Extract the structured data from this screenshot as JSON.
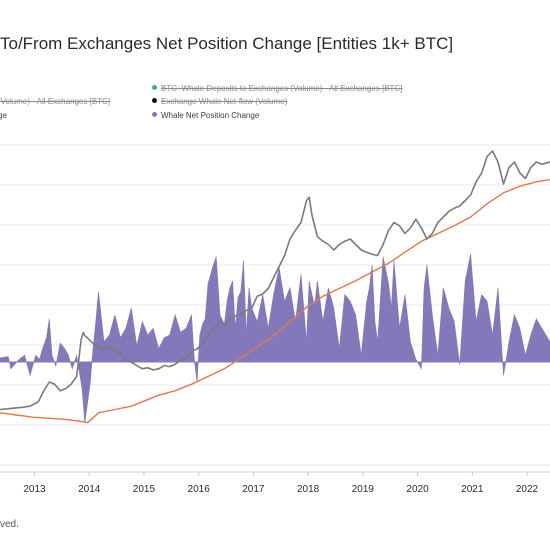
{
  "title": "To/From Exchanges Net Position Change [Entities 1k+ BTC]",
  "legend": [
    {
      "label": "BTC: Whale Deposits to Exchanges (Volume) - All Exchanges [BTC]",
      "color": "#3bb273",
      "active": false
    },
    {
      "label": "(Volume) - All Exchanges [BTC]",
      "color": "#9b9b9b",
      "active": false
    },
    {
      "label": "Exchange Whale Net-flow (Volume)",
      "color": "#111111",
      "active": false
    },
    {
      "label": "ge",
      "color": "#d97a4a",
      "active": true
    },
    {
      "label": "Whale Net Position Change",
      "color": "#8279bb",
      "active": true
    }
  ],
  "footer": "ved.",
  "colors": {
    "area": "#8279bb",
    "price": "#7a7a7a",
    "ma": "#e0794a",
    "grid": "#e9e9e9"
  },
  "chart_data": {
    "type": "area",
    "title": "To/From Exchanges Net Position Change [Entities 1k+ BTC]",
    "x_ticks": [
      "2013",
      "2014",
      "2015",
      "2016",
      "2017",
      "2018",
      "2019",
      "2020",
      "2021",
      "2022"
    ],
    "xlim": [
      2012.4,
      2022.45
    ],
    "price_ylim": [
      0,
      1
    ],
    "netchange_ylim": [
      -1,
      1
    ],
    "grid": true,
    "series": [
      {
        "name": "Whale Net Position Change",
        "type": "area",
        "x": [
          2012.4,
          2012.55,
          2012.6,
          2012.75,
          2012.85,
          2012.95,
          2013.05,
          2013.12,
          2013.18,
          2013.25,
          2013.3,
          2013.35,
          2013.42,
          2013.5,
          2013.58,
          2013.65,
          2013.72,
          2013.8,
          2013.86,
          2013.9,
          2013.95,
          2014.0,
          2014.05,
          2014.1,
          2014.15,
          2014.2,
          2014.3,
          2014.4,
          2014.5,
          2014.6,
          2014.7,
          2014.8,
          2014.9,
          2015.0,
          2015.1,
          2015.2,
          2015.3,
          2015.4,
          2015.5,
          2015.6,
          2015.7,
          2015.8,
          2015.9,
          2015.95,
          2016.0,
          2016.05,
          2016.1,
          2016.15,
          2016.2,
          2016.3,
          2016.35,
          2016.42,
          2016.5,
          2016.55,
          2016.6,
          2016.65,
          2016.7,
          2016.75,
          2016.8,
          2016.85,
          2016.9,
          2016.95,
          2017.0,
          2017.1,
          2017.2,
          2017.3,
          2017.4,
          2017.5,
          2017.6,
          2017.7,
          2017.8,
          2017.9,
          2018.0,
          2018.05,
          2018.1,
          2018.15,
          2018.2,
          2018.3,
          2018.4,
          2018.5,
          2018.6,
          2018.65,
          2018.7,
          2018.8,
          2018.9,
          2019.0,
          2019.1,
          2019.15,
          2019.2,
          2019.25,
          2019.3,
          2019.4,
          2019.5,
          2019.55,
          2019.6,
          2019.7,
          2019.8,
          2019.9,
          2020.0,
          2020.1,
          2020.15,
          2020.2,
          2020.3,
          2020.4,
          2020.5,
          2020.6,
          2020.7,
          2020.8,
          2020.9,
          2021.0,
          2021.1,
          2021.2,
          2021.3,
          2021.4,
          2021.5,
          2021.6,
          2021.7,
          2021.8,
          2021.9,
          2022.0,
          2022.1,
          2022.2,
          2022.3,
          2022.45
        ],
        "values": [
          0.03,
          0.04,
          -0.05,
          0.02,
          0.05,
          -0.1,
          0.05,
          0.02,
          0.1,
          0.18,
          0.32,
          0.05,
          -0.03,
          0.14,
          0.1,
          0.05,
          -0.05,
          0.05,
          -0.1,
          -0.2,
          -0.45,
          -0.3,
          -0.15,
          0.1,
          0.3,
          0.52,
          0.15,
          0.2,
          0.35,
          0.18,
          0.25,
          0.4,
          0.12,
          0.3,
          0.2,
          0.25,
          0.1,
          0.18,
          0.2,
          0.35,
          0.22,
          0.25,
          0.35,
          0.02,
          -0.15,
          0.2,
          0.28,
          0.32,
          0.58,
          0.72,
          0.78,
          0.35,
          0.28,
          0.45,
          0.55,
          0.6,
          0.25,
          0.48,
          0.52,
          0.75,
          0.2,
          0.55,
          0.4,
          0.3,
          0.5,
          0.25,
          0.5,
          0.7,
          0.45,
          0.55,
          0.3,
          0.65,
          0.15,
          0.6,
          0.5,
          0.42,
          0.6,
          0.3,
          0.55,
          0.4,
          0.1,
          0.3,
          0.5,
          0.45,
          0.35,
          0.05,
          0.45,
          0.55,
          0.72,
          0.3,
          0.15,
          0.78,
          0.58,
          0.4,
          0.75,
          0.25,
          0.5,
          0.15,
          0.02,
          -0.05,
          0.55,
          0.72,
          0.35,
          0.05,
          0.55,
          0.4,
          0.3,
          -0.02,
          0.6,
          0.8,
          0.3,
          0.5,
          0.45,
          0.2,
          0.55,
          -0.1,
          0.15,
          0.35,
          0.25,
          0.05,
          0.2,
          0.32,
          0.25,
          0.15
        ]
      },
      {
        "name": "price",
        "type": "line",
        "x": [
          2012.4,
          2012.6,
          2012.8,
          2012.95,
          2013.1,
          2013.2,
          2013.3,
          2013.4,
          2013.5,
          2013.6,
          2013.7,
          2013.8,
          2013.85,
          2013.88,
          2013.92,
          2013.95,
          2014.0,
          2014.1,
          2014.2,
          2014.3,
          2014.4,
          2014.5,
          2014.6,
          2014.7,
          2014.8,
          2014.9,
          2015.0,
          2015.1,
          2015.2,
          2015.3,
          2015.4,
          2015.5,
          2015.6,
          2015.7,
          2015.8,
          2015.9,
          2016.0,
          2016.1,
          2016.2,
          2016.3,
          2016.4,
          2016.5,
          2016.6,
          2016.7,
          2016.8,
          2016.9,
          2017.0,
          2017.1,
          2017.2,
          2017.3,
          2017.4,
          2017.5,
          2017.6,
          2017.7,
          2017.8,
          2017.9,
          2018.0,
          2018.05,
          2018.1,
          2018.2,
          2018.3,
          2018.4,
          2018.5,
          2018.6,
          2018.7,
          2018.8,
          2018.9,
          2019.0,
          2019.1,
          2019.2,
          2019.3,
          2019.4,
          2019.5,
          2019.6,
          2019.7,
          2019.8,
          2019.9,
          2020.0,
          2020.1,
          2020.2,
          2020.3,
          2020.4,
          2020.5,
          2020.6,
          2020.7,
          2020.8,
          2020.9,
          2021.0,
          2021.1,
          2021.2,
          2021.3,
          2021.4,
          2021.5,
          2021.6,
          2021.7,
          2021.8,
          2021.9,
          2022.0,
          2022.1,
          2022.2,
          2022.3,
          2022.45
        ],
        "values": [
          0.05,
          0.06,
          0.07,
          0.08,
          0.12,
          0.22,
          0.3,
          0.28,
          0.22,
          0.24,
          0.28,
          0.35,
          0.55,
          0.68,
          0.75,
          0.72,
          0.7,
          0.65,
          0.62,
          0.6,
          0.62,
          0.58,
          0.56,
          0.5,
          0.48,
          0.45,
          0.42,
          0.43,
          0.41,
          0.42,
          0.45,
          0.44,
          0.46,
          0.5,
          0.52,
          0.58,
          0.6,
          0.65,
          0.72,
          0.78,
          0.85,
          0.82,
          0.88,
          0.9,
          0.92,
          0.95,
          0.97,
          1.08,
          1.1,
          1.15,
          1.25,
          1.35,
          1.45,
          1.6,
          1.68,
          1.75,
          1.95,
          1.98,
          1.82,
          1.62,
          1.58,
          1.55,
          1.5,
          1.55,
          1.58,
          1.6,
          1.55,
          1.5,
          1.48,
          1.46,
          1.45,
          1.55,
          1.68,
          1.75,
          1.72,
          1.65,
          1.7,
          1.78,
          1.7,
          1.6,
          1.65,
          1.75,
          1.8,
          1.85,
          1.88,
          1.9,
          1.95,
          2.0,
          2.12,
          2.2,
          2.35,
          2.4,
          2.3,
          2.1,
          2.25,
          2.3,
          2.2,
          2.15,
          2.25,
          2.3,
          2.28,
          2.3
        ]
      },
      {
        "name": "moving-average",
        "type": "line",
        "x": [
          2012.4,
          2012.7,
          2013.0,
          2013.3,
          2013.6,
          2013.9,
          2014.0,
          2014.2,
          2014.5,
          2014.8,
          2015.0,
          2015.3,
          2015.6,
          2015.9,
          2016.2,
          2016.5,
          2016.8,
          2017.1,
          2017.4,
          2017.7,
          2018.0,
          2018.3,
          2018.6,
          2018.9,
          2019.2,
          2019.5,
          2019.8,
          2020.1,
          2020.4,
          2020.7,
          2021.0,
          2021.3,
          2021.6,
          2021.9,
          2022.2,
          2022.45
        ],
        "values": [
          0.02,
          0.0,
          -0.02,
          -0.03,
          -0.04,
          -0.06,
          -0.07,
          0.02,
          0.05,
          0.08,
          0.12,
          0.18,
          0.22,
          0.28,
          0.35,
          0.42,
          0.52,
          0.62,
          0.72,
          0.85,
          0.98,
          1.08,
          1.15,
          1.22,
          1.3,
          1.38,
          1.48,
          1.58,
          1.65,
          1.72,
          1.8,
          1.92,
          2.02,
          2.08,
          2.12,
          2.14
        ]
      }
    ]
  }
}
